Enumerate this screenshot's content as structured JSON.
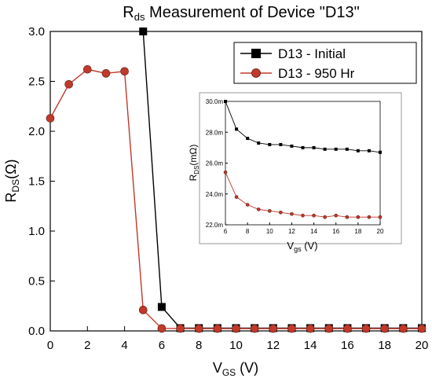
{
  "chart_data": [
    {
      "type": "line",
      "title_main": "R",
      "title_sub": "ds",
      "title_rest": " Measurement of Device \"D13\"",
      "xlabel_main": "V",
      "xlabel_sub": "GS",
      "xlabel_rest": " (V)",
      "ylabel_main": "R",
      "ylabel_sub": "DS",
      "ylabel_rest": "(Ω)",
      "xlim": [
        0,
        20
      ],
      "ylim": [
        0,
        3.0
      ],
      "xticks": [
        "0",
        "2",
        "4",
        "6",
        "8",
        "10",
        "12",
        "14",
        "16",
        "18",
        "20"
      ],
      "yticks": [
        "0.0",
        "0.5",
        "1.0",
        "1.5",
        "2.0",
        "2.5",
        "3.0"
      ],
      "legend_position": "top-right",
      "series": [
        {
          "name": "D13 - Initial",
          "color": "#000000",
          "marker": "square",
          "x": [
            5,
            6,
            7,
            8,
            9,
            10,
            11,
            12,
            13,
            14,
            15,
            16,
            17,
            18,
            19,
            20
          ],
          "values": [
            3.0,
            0.24,
            0.028,
            0.028,
            0.028,
            0.028,
            0.028,
            0.028,
            0.028,
            0.028,
            0.028,
            0.028,
            0.028,
            0.028,
            0.028,
            0.028
          ]
        },
        {
          "name": "D13 - 950 Hr",
          "color": "#c0392b",
          "marker": "circle",
          "x": [
            0,
            1,
            2,
            3,
            4,
            5,
            6,
            7,
            8,
            9,
            10,
            11,
            12,
            13,
            14,
            15,
            16,
            17,
            18,
            19,
            20
          ],
          "values": [
            2.13,
            2.47,
            2.62,
            2.58,
            2.6,
            0.21,
            0.025,
            0.024,
            0.023,
            0.023,
            0.023,
            0.023,
            0.023,
            0.023,
            0.023,
            0.023,
            0.023,
            0.023,
            0.023,
            0.023,
            0.023
          ]
        }
      ]
    },
    {
      "type": "line",
      "xlabel_main": "V",
      "xlabel_sub": "gs",
      "xlabel_rest": " (V)",
      "ylabel_main": "R",
      "ylabel_sub": "DS",
      "ylabel_rest": "(mΩ)",
      "xlim": [
        6,
        20
      ],
      "ylim": [
        22.0,
        30.0
      ],
      "xticks": [
        "6",
        "8",
        "10",
        "12",
        "14",
        "16",
        "18",
        "20"
      ],
      "yticks": [
        "22.0m",
        "24.0m",
        "26.0m",
        "28.0m",
        "30.0m"
      ],
      "series": [
        {
          "name": "D13 - Initial",
          "color": "#000000",
          "marker": "square",
          "x": [
            6,
            7,
            8,
            9,
            10,
            11,
            12,
            13,
            14,
            15,
            16,
            17,
            18,
            19,
            20
          ],
          "values": [
            30.0,
            28.2,
            27.6,
            27.3,
            27.2,
            27.2,
            27.1,
            27.0,
            27.0,
            26.9,
            26.9,
            26.9,
            26.8,
            26.8,
            26.7
          ]
        },
        {
          "name": "D13 - 950 Hr",
          "color": "#c0392b",
          "marker": "circle",
          "x": [
            6,
            7,
            8,
            9,
            10,
            11,
            12,
            13,
            14,
            15,
            16,
            17,
            18,
            19,
            20
          ],
          "values": [
            25.4,
            23.8,
            23.3,
            23.0,
            22.9,
            22.8,
            22.7,
            22.6,
            22.6,
            22.5,
            22.6,
            22.5,
            22.5,
            22.5,
            22.5
          ]
        }
      ]
    }
  ]
}
